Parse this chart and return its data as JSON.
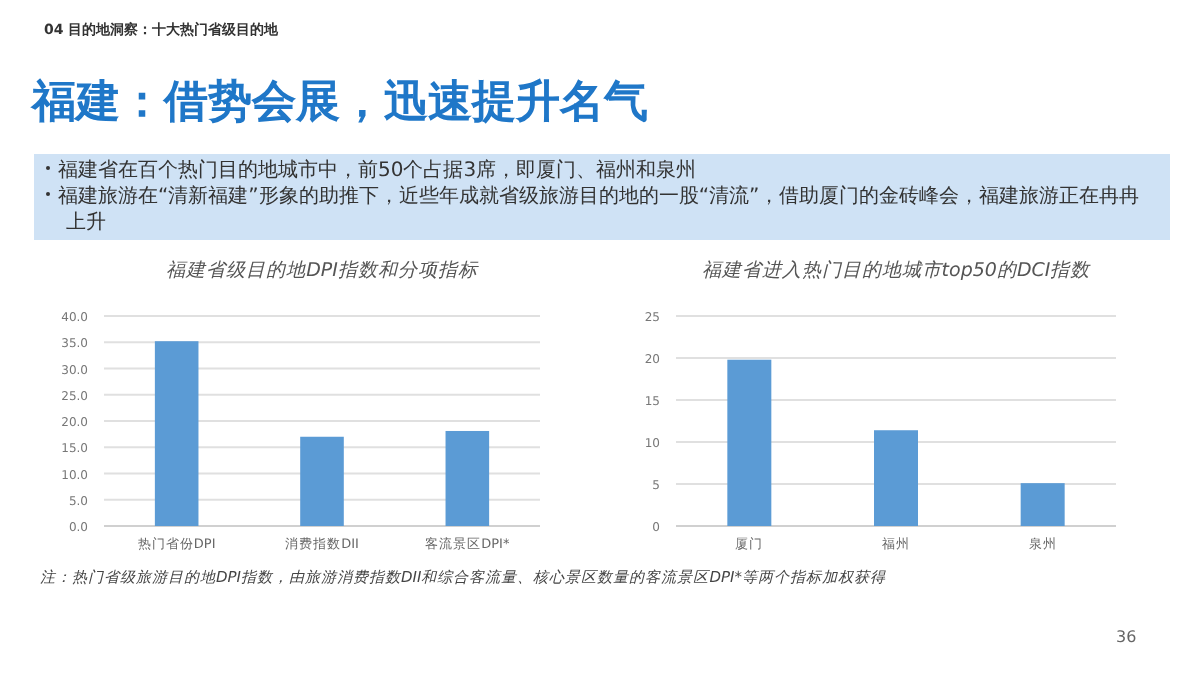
{
  "chart_data": [
    {
      "type": "bar",
      "title": "福建省级目的地DPI指数和分项指标",
      "categories": [
        "热门省份DPI",
        "消费指数DII",
        "客流景区DPI*"
      ],
      "values": [
        35.2,
        17.0,
        18.1
      ],
      "color": "#5b9bd5",
      "ylim": [
        0,
        40
      ],
      "yticks": [
        {
          "value": 0,
          "label": "0.0"
        },
        {
          "value": 5,
          "label": "5.0"
        },
        {
          "value": 10,
          "label": "10.0"
        },
        {
          "value": 15,
          "label": "15.0"
        },
        {
          "value": 20,
          "label": "20.0"
        },
        {
          "value": 25,
          "label": "25.0"
        },
        {
          "value": 30,
          "label": "30.0"
        },
        {
          "value": 35,
          "label": "35.0"
        },
        {
          "value": 40,
          "label": "40.0"
        }
      ],
      "grid": "y",
      "annotations": [
        "04 目的地洞察：十大热门省级目的地",
        "福建：借势会展，迅速提升名气",
        "福建省在百个热门目的地城市中，前50个占据3席，即厦门、福州和泉州",
        "福建旅游在“清新福建”形象的助推下，近些年成就省级旅游目的地的一股“清流”，借助厦门的金砖峰会，福建旅游正在冉冉上升",
        "注：热门省级旅游目的地DPI指数，由旅游消费指数DII和综合客流量、核心景区数量的客流景区DPI*等两个指标加权获得",
        "36"
      ]
    },
    {
      "type": "bar",
      "title": "福建省进入热门目的地城市top50的DCI指数",
      "categories": [
        "厦门",
        "福州",
        "泉州"
      ],
      "values": [
        19.8,
        11.4,
        5.1
      ],
      "color": "#5b9bd5",
      "ylim": [
        0,
        25
      ],
      "yticks": [
        0,
        5,
        10,
        15,
        20,
        25
      ],
      "grid": "y"
    }
  ]
}
